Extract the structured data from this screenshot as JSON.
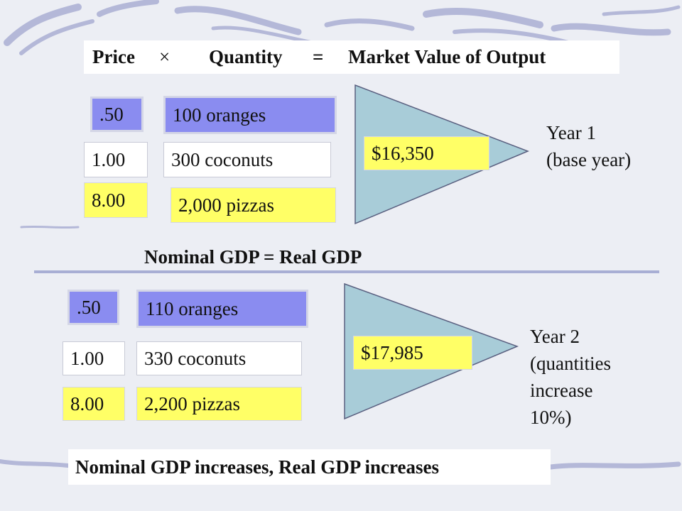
{
  "header": {
    "price": "Price",
    "times": "×",
    "quantity": "Quantity",
    "equals": "=",
    "market_value": "Market Value of Output"
  },
  "year1": {
    "prices": [
      ".50",
      "1.00",
      "8.00"
    ],
    "quantities": [
      "100 oranges",
      "300 coconuts",
      "2,000 pizzas"
    ],
    "total": "$16,350",
    "label_line1": "Year 1",
    "label_line2": "(base year)"
  },
  "middle_note": "Nominal GDP = Real GDP",
  "year2": {
    "prices": [
      ".50",
      "1.00",
      "8.00"
    ],
    "quantities": [
      "110 oranges",
      "330 coconuts",
      "2,200 pizzas"
    ],
    "total": "$17,985",
    "label_line1": "Year 2",
    "label_line2": "(quantities",
    "label_line3": "increase",
    "label_line4": "10%)"
  },
  "footer_note": "Nominal GDP increases, Real GDP increases",
  "colors": {
    "background": "#eceef4",
    "blue_box": "#8a8cf0",
    "yellow_box": "#ffff66",
    "triangle": "#a8ccd8",
    "accent_swirl": "#a8aed4"
  }
}
